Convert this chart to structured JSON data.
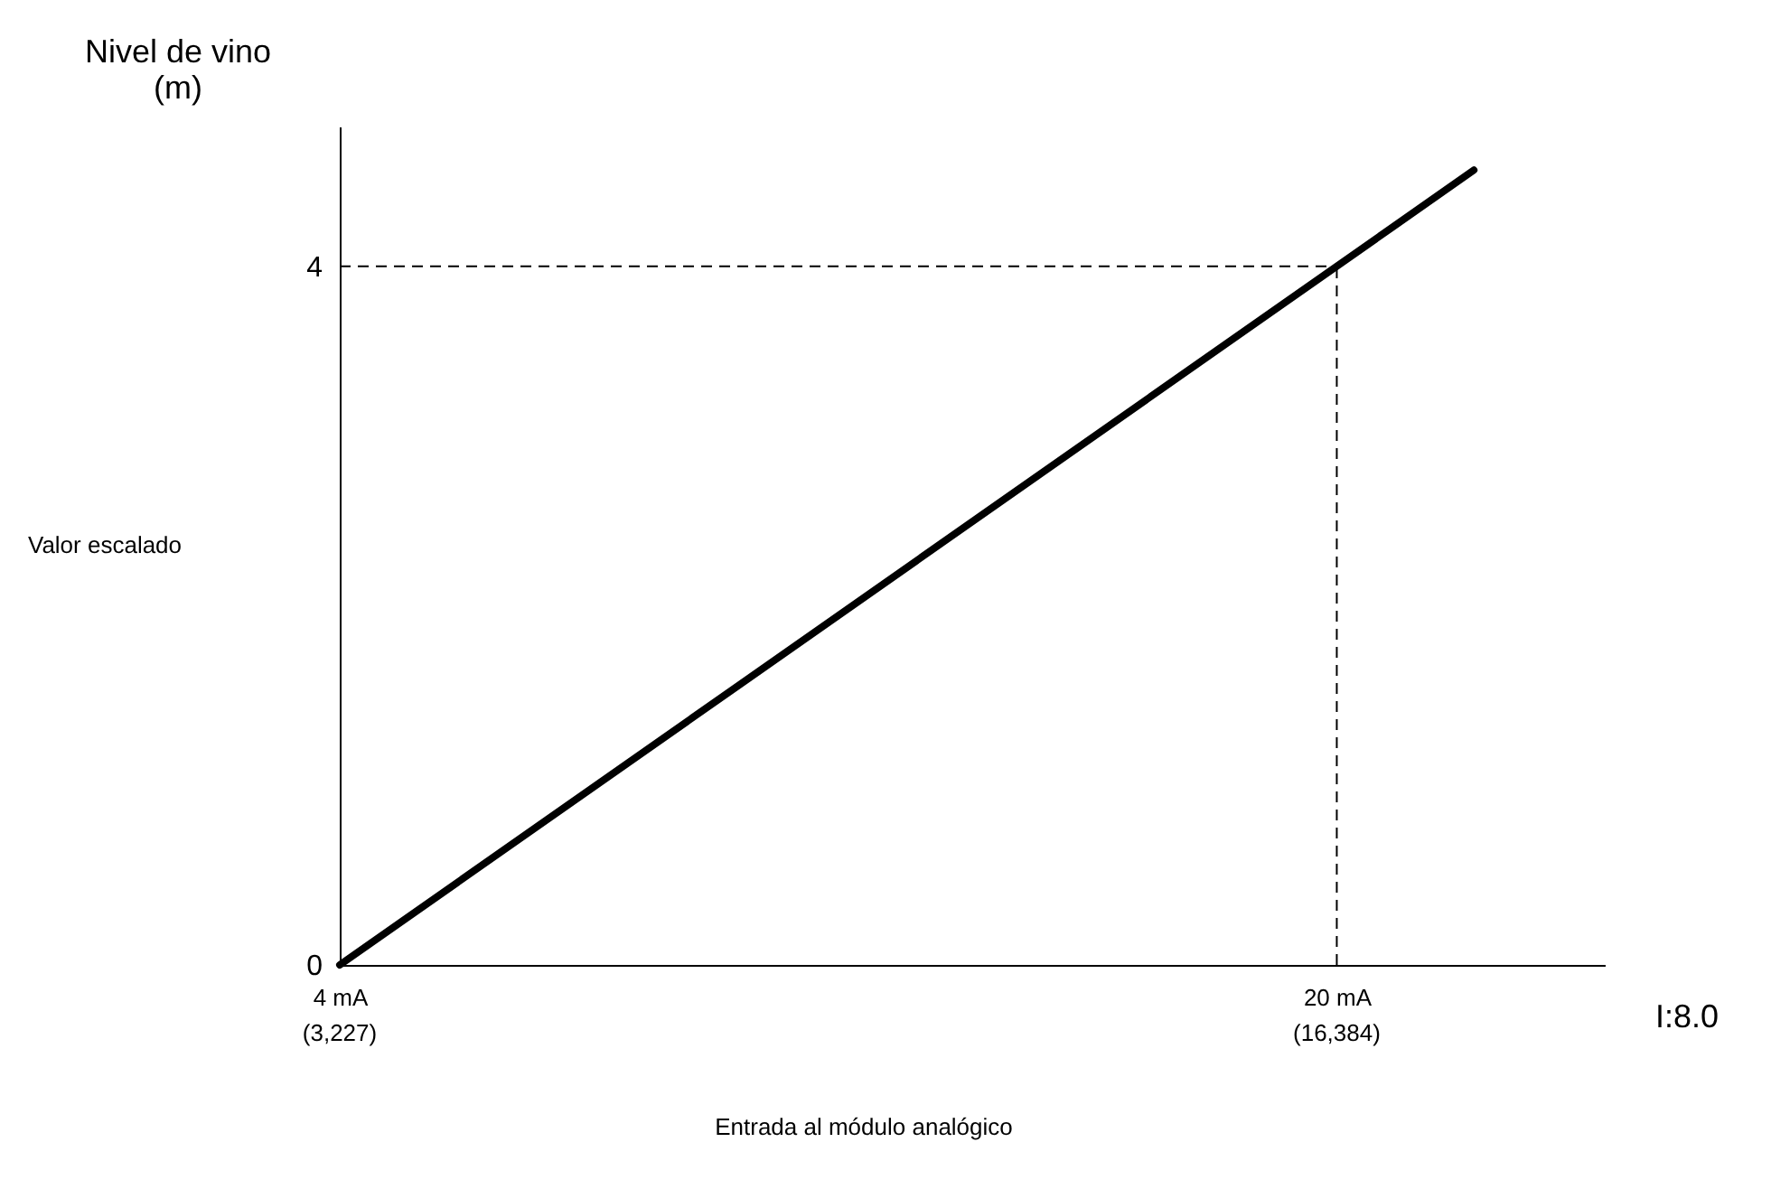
{
  "chart_data": {
    "type": "line",
    "x": [
      4,
      22.2
    ],
    "series": [
      {
        "color": "#000000",
        "values": [
          0,
          4.55
        ]
      }
    ],
    "xlim": [
      4,
      24.3
    ],
    "ylim": [
      0,
      4.8
    ],
    "xticks": [
      {
        "value": 4,
        "label": "4 mA"
      },
      {
        "value": 20,
        "label": "20 mA"
      }
    ],
    "yticks": [
      0,
      4
    ],
    "xlabel": "I:8.0",
    "ylabel": "Nivel de  vino\n(m)",
    "annotations": [
      "Valor escalado",
      "Entrada al módulo analógico",
      {
        "text": "(3,227)",
        "x": 4,
        "y": 0
      },
      {
        "text": "(16,384)",
        "x": 20,
        "y": 0
      }
    ],
    "ref_lines": [
      {
        "axis": "x",
        "value": 20,
        "line_style": "dashed",
        "color": "#000000"
      },
      {
        "axis": "y",
        "value": 4,
        "line_style": "dashed",
        "color": "#000000"
      }
    ],
    "grid": false,
    "marker": "none",
    "line_style": "solid"
  }
}
